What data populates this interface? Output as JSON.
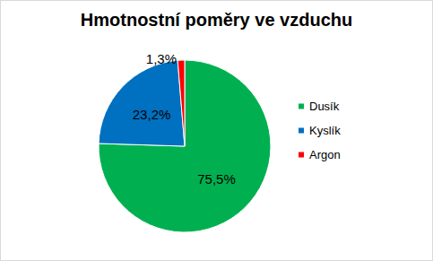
{
  "chart_data": {
    "type": "pie",
    "title": "Hmotnostní poměry ve vzduchu",
    "categories": [
      "Dusík",
      "Kyslík",
      "Argon"
    ],
    "values": [
      75.5,
      23.2,
      1.3
    ],
    "value_labels": [
      "75,5%",
      "23,2%",
      "1,3%"
    ],
    "colors": [
      "#00b050",
      "#0070c0",
      "#ff0000"
    ],
    "data_labels": true,
    "legend": "right"
  }
}
